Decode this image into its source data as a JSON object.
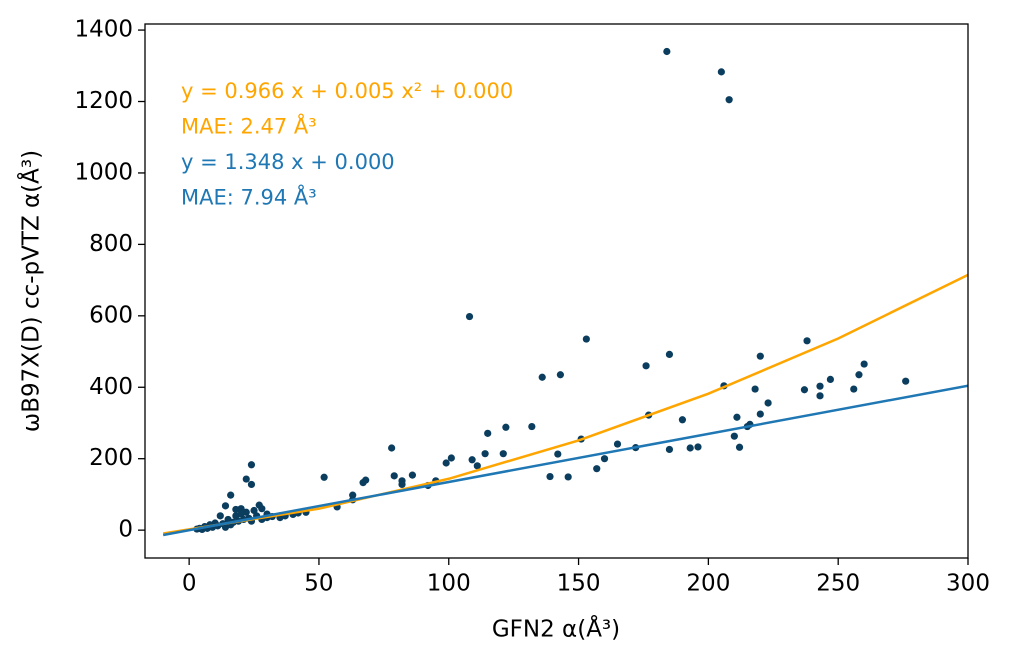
{
  "chart_data": {
    "type": "scatter",
    "x_label": "GFN2 α(Å³)",
    "y_label": "ωB97X(D) cc-pVTZ α(Å³)",
    "xlim": [
      -17,
      300
    ],
    "ylim": [
      -78,
      1417
    ],
    "xticks": [
      0,
      50,
      100,
      150,
      200,
      250,
      300
    ],
    "yticks": [
      0,
      200,
      400,
      600,
      800,
      1000,
      1200,
      1400
    ],
    "color": "#0b3d5e",
    "x": [
      184,
      205,
      208,
      108,
      153,
      185,
      176,
      238,
      220,
      260,
      258,
      247,
      243,
      243,
      237,
      256,
      276,
      218,
      211,
      223,
      220,
      216,
      215,
      212,
      210,
      206,
      196,
      193,
      190,
      185,
      177,
      172,
      165,
      160,
      157,
      151,
      146,
      143,
      142,
      139,
      136,
      132,
      122,
      121,
      115,
      114,
      111,
      109,
      101,
      99,
      95,
      92,
      86,
      82,
      82,
      78,
      79,
      68,
      67,
      63,
      63,
      57,
      52,
      45,
      40,
      35,
      30,
      28,
      27,
      24,
      24,
      22,
      20,
      18,
      16,
      14,
      12,
      10,
      8,
      6,
      4,
      3,
      15,
      18,
      20,
      22,
      25,
      26,
      30,
      32,
      35,
      37,
      42,
      11,
      13,
      17,
      19,
      21,
      23,
      14,
      16,
      24,
      28,
      7,
      9,
      5
    ],
    "values": [
      1340,
      1283,
      1205,
      598,
      535,
      492,
      460,
      530,
      487,
      465,
      435,
      422,
      403,
      376,
      393,
      395,
      417,
      395,
      316,
      356,
      325,
      296,
      290,
      232,
      263,
      404,
      233,
      230,
      309,
      226,
      322,
      231,
      241,
      200,
      172,
      255,
      149,
      435,
      213,
      150,
      428,
      290,
      288,
      214,
      271,
      214,
      180,
      197,
      202,
      188,
      138,
      125,
      154,
      138,
      128,
      230,
      152,
      140,
      133,
      98,
      85,
      65,
      148,
      50,
      44,
      40,
      35,
      60,
      70,
      183,
      128,
      143,
      60,
      58,
      98,
      68,
      40,
      20,
      15,
      10,
      5,
      3,
      30,
      40,
      45,
      50,
      55,
      40,
      45,
      38,
      35,
      40,
      48,
      12,
      18,
      22,
      25,
      30,
      33,
      8,
      15,
      25,
      30,
      5,
      8,
      2
    ],
    "fit_lines": [
      {
        "color": "#ffa500",
        "x": [
          -10,
          50,
          100,
          150,
          200,
          250,
          300
        ],
        "values": [
          -9.2,
          60.1,
          143.8,
          251.1,
          382,
          536.5,
          714.8
        ]
      },
      {
        "color": "#1f77b4",
        "x": [
          -10,
          300
        ],
        "values": [
          -13.5,
          404.4
        ]
      }
    ],
    "annotations": [
      {
        "text": "y = 0.966 x + 0.005 x² + 0.000",
        "color": "#ffa500"
      },
      {
        "text": "MAE: 2.47 Å³",
        "color": "#ffa500"
      },
      {
        "text": "y = 1.348 x + 0.000",
        "color": "#1f77b4"
      },
      {
        "text": "MAE: 7.94 Å³",
        "color": "#1f77b4"
      }
    ]
  }
}
